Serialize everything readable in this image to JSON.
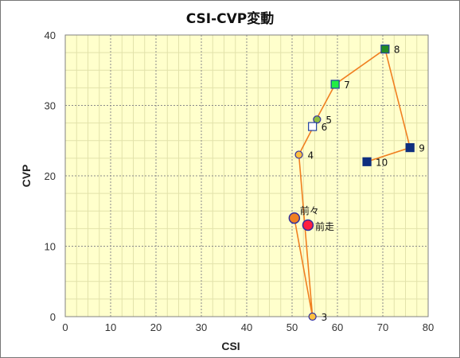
{
  "chart_data": {
    "type": "scatter",
    "title": "CSI-CVP変動",
    "xlabel": "CSI",
    "ylabel": "CVP",
    "xlim": [
      0,
      80
    ],
    "ylim": [
      0,
      40
    ],
    "xticks": [
      "0",
      "10",
      "20",
      "30",
      "40",
      "50",
      "60",
      "70",
      "80"
    ],
    "yticks": [
      "0",
      "10",
      "20",
      "30",
      "40"
    ],
    "grid": true,
    "background_color": "#FFFFCC",
    "line_color": "#F07F20",
    "path_order": [
      "前々",
      "3",
      "4",
      "5",
      "6",
      "7",
      "8",
      "9",
      "10"
    ],
    "points": [
      {
        "label": "前々",
        "x": 50.5,
        "y": 14,
        "marker": "circle-large",
        "fill": "#F07F20",
        "stroke": "#2F2FA0"
      },
      {
        "label": "前走",
        "x": 53.5,
        "y": 13,
        "marker": "circle-large",
        "fill": "#FF1F3F",
        "stroke": "#2F2FA0"
      },
      {
        "label": "3",
        "x": 54.5,
        "y": 0,
        "marker": "circle",
        "fill": "#FFC03F",
        "stroke": "#2F2FA0"
      },
      {
        "label": "4",
        "x": 51.5,
        "y": 23,
        "marker": "circle",
        "fill": "#FFC03F",
        "stroke": "#2F2FA0"
      },
      {
        "label": "5",
        "x": 55.5,
        "y": 28,
        "marker": "circle",
        "fill": "#8FBF3F",
        "stroke": "#2F2FA0"
      },
      {
        "label": "6",
        "x": 54.5,
        "y": 27,
        "marker": "square",
        "fill": "#FFFFFF",
        "stroke": "#1F3F9F"
      },
      {
        "label": "7",
        "x": 59.5,
        "y": 33,
        "marker": "square",
        "fill": "#22EE44",
        "stroke": "#1F3F9F"
      },
      {
        "label": "8",
        "x": 70.5,
        "y": 38,
        "marker": "square",
        "fill": "#228B22",
        "stroke": "#1F3F9F"
      },
      {
        "label": "9",
        "x": 76,
        "y": 24,
        "marker": "square",
        "fill": "#0F2F7F",
        "stroke": "#0F2F7F"
      },
      {
        "label": "10",
        "x": 66.5,
        "y": 22,
        "marker": "square",
        "fill": "#0F2F7F",
        "stroke": "#0F2F7F"
      }
    ]
  }
}
